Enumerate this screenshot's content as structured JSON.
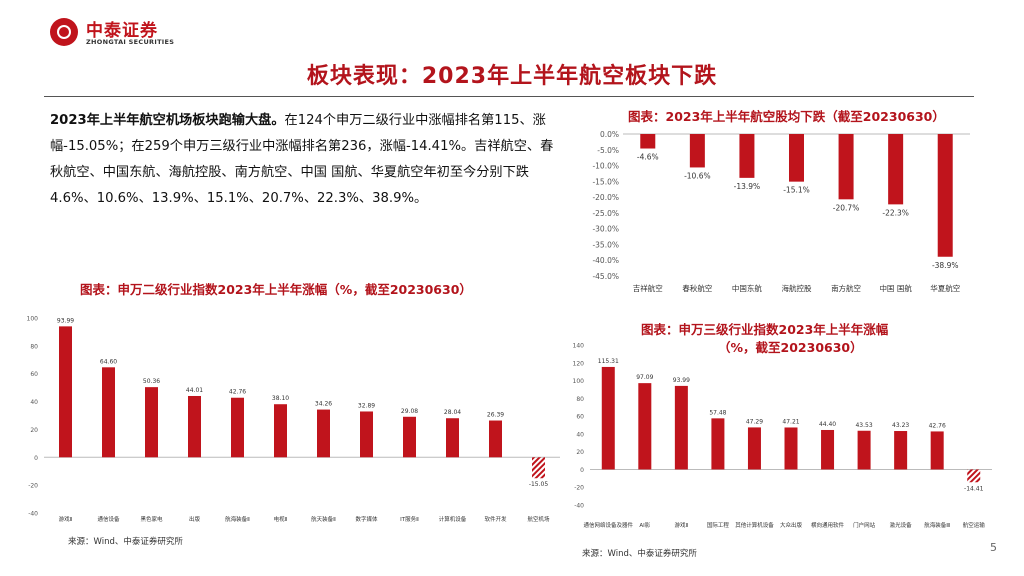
{
  "header": {
    "logo_cn": "中泰证券",
    "logo_en": "ZHONGTAI SECURITIES",
    "title": "板块表现：2023年上半年航空板块下跌"
  },
  "text": {
    "bold_lead": "2023年上半年航空机场板块跑输大盘。",
    "body": "在124个申万二级行业中涨幅排名第115、涨幅-15.05%；在259个申万三级行业中涨幅排名第236，涨幅-14.41%。吉祥航空、春秋航空、中国东航、海航控股、南方航空、中国 国航、华夏航空年初至今分别下跌4.6%、10.6%、13.9%、15.1%、20.7%、22.3%、38.9%。"
  },
  "captions": {
    "chart1": "图表：2023年上半年航空股均下跌（截至20230630）",
    "chart2": "图表：申万二级行业指数2023年上半年涨幅（%，截至20230630）",
    "chart3_line1": "图表：申万三级行业指数2023年上半年涨幅",
    "chart3_line2": "（%，截至20230630）"
  },
  "sources": {
    "left": "来源：Wind、中泰证券研究所",
    "right": "来源：Wind、中泰证券研究所"
  },
  "page_number": "5",
  "colors": {
    "bar": "#c0141c",
    "title": "#b3141c"
  },
  "chart_data": [
    {
      "type": "bar",
      "title": "图表：2023年上半年航空股均下跌（截至20230630）",
      "categories": [
        "吉祥航空",
        "春秋航空",
        "中国东航",
        "海航控股",
        "南方航空",
        "中国 国航",
        "华夏航空"
      ],
      "values": [
        -4.6,
        -10.6,
        -13.9,
        -15.1,
        -20.7,
        -22.3,
        -38.9
      ],
      "value_labels": [
        "-4.6%",
        "-10.6%",
        "-13.9%",
        "-15.1%",
        "-20.7%",
        "-22.3%",
        "-38.9%"
      ],
      "yticks": [
        "0.0%",
        "-5.0%",
        "-10.0%",
        "-15.0%",
        "-20.0%",
        "-25.0%",
        "-30.0%",
        "-35.0%",
        "-40.0%",
        "-45.0%"
      ],
      "ylim": [
        -45,
        0
      ]
    },
    {
      "type": "bar",
      "title": "图表：申万二级行业指数2023年上半年涨幅（%，截至20230630）",
      "categories": [
        "游戏Ⅱ",
        "通信设备",
        "黑色家电",
        "出版",
        "航海装备Ⅱ",
        "电视Ⅱ",
        "航天装备Ⅱ",
        "数字媒体",
        "IT服务Ⅱ",
        "计算机设备",
        "软件开发",
        "航空机场"
      ],
      "values": [
        93.99,
        64.6,
        50.36,
        44.01,
        42.76,
        38.1,
        34.26,
        32.89,
        29.08,
        28.04,
        26.39,
        -15.05
      ],
      "value_labels": [
        "93.99",
        "64.60",
        "50.36",
        "44.01",
        "42.76",
        "38.10",
        "34.26",
        "32.89",
        "29.08",
        "28.04",
        "26.39",
        "-15.05"
      ],
      "highlight_index": 11,
      "yticks": [
        "100",
        "80",
        "60",
        "40",
        "20",
        "0",
        "-20",
        "-40"
      ],
      "ylim": [
        -40,
        100
      ]
    },
    {
      "type": "bar",
      "title": "图表：申万三级行业指数2023年上半年涨幅（%，截至20230630）",
      "categories": [
        "通信网络设备及器件",
        "AI影",
        "游戏Ⅱ",
        "国际工程",
        "其他计算机设备",
        "大众出版",
        "横向通用软件",
        "门户网站",
        "激光设备",
        "航海装备Ⅲ",
        "航空运输"
      ],
      "values": [
        115.31,
        97.09,
        93.99,
        57.48,
        47.29,
        47.21,
        44.4,
        43.53,
        43.23,
        42.76,
        -14.41
      ],
      "value_labels": [
        "115.31",
        "97.09",
        "93.99",
        "57.48",
        "47.29",
        "47.21",
        "44.40",
        "43.53",
        "43.23",
        "42.76",
        "-14.41"
      ],
      "highlight_index": 10,
      "yticks": [
        "140",
        "120",
        "100",
        "80",
        "60",
        "40",
        "20",
        "0",
        "-20",
        "-40"
      ],
      "ylim": [
        -40,
        140
      ]
    }
  ]
}
